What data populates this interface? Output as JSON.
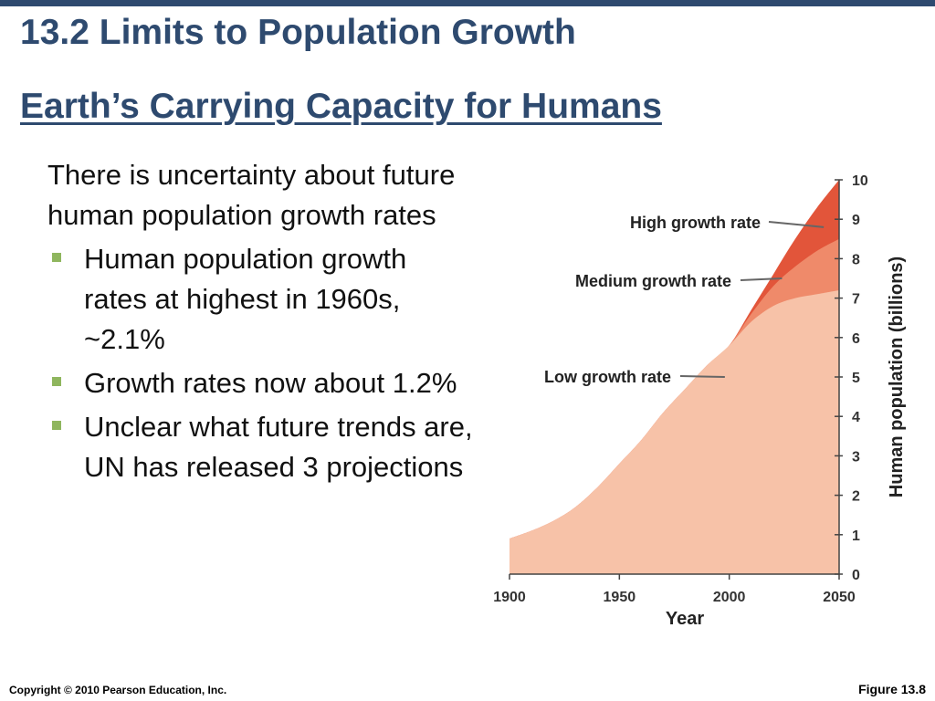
{
  "slide": {
    "title": "13.2 Limits to Population Growth",
    "subtitle": "Earth’s Carrying Capacity for Humans",
    "intro": "There is uncertainty about future human population growth rates",
    "bullets": [
      "Human population growth rates at highest in 1960s, ~2.1%",
      "Growth rates now about 1.2%",
      "Unclear what future trends are, UN has released 3 projections"
    ],
    "copyright": "Copyright © 2010 Pearson Education, Inc.",
    "figure_label": "Figure 13.8"
  },
  "colors": {
    "title": "#2e4a6f",
    "bullet": "#8fb65e",
    "high": "#e2553a",
    "medium": "#ef8a6a",
    "low": "#f7c2a8"
  },
  "chart_data": {
    "type": "area",
    "xlabel": "Year",
    "ylabel": "Human population (billions)",
    "xlim": [
      1900,
      2050
    ],
    "ylim": [
      0,
      10
    ],
    "x_ticks": [
      1900,
      1950,
      2000,
      2050
    ],
    "y_ticks": [
      0,
      1,
      2,
      3,
      4,
      5,
      6,
      7,
      8,
      9,
      10
    ],
    "y_axis_side": "right",
    "grid": false,
    "history": {
      "x": [
        1900,
        1910,
        1920,
        1930,
        1940,
        1950,
        1960,
        1970,
        1980,
        1990,
        2000
      ],
      "y": [
        0.9,
        1.1,
        1.35,
        1.7,
        2.2,
        2.8,
        3.4,
        4.1,
        4.7,
        5.3,
        5.8
      ]
    },
    "series": [
      {
        "name": "High growth rate",
        "x": [
          2000,
          2010,
          2020,
          2030,
          2040,
          2050
        ],
        "y": [
          5.8,
          6.7,
          7.6,
          8.5,
          9.3,
          10.0
        ],
        "color_key": "high"
      },
      {
        "name": "Medium growth rate",
        "x": [
          2000,
          2010,
          2020,
          2030,
          2040,
          2050
        ],
        "y": [
          5.8,
          6.6,
          7.3,
          7.8,
          8.2,
          8.5
        ],
        "color_key": "medium"
      },
      {
        "name": "Low growth rate",
        "x": [
          2000,
          2010,
          2020,
          2030,
          2040,
          2050
        ],
        "y": [
          5.8,
          6.4,
          6.8,
          7.0,
          7.1,
          7.2
        ],
        "color_key": "low"
      }
    ],
    "annotations": [
      {
        "text": "High growth rate",
        "x": 2043,
        "y": 8.8
      },
      {
        "text": "Medium growth rate",
        "x": 2024,
        "y": 7.5
      },
      {
        "text": "Low growth rate",
        "x": 1998,
        "y": 5.0
      }
    ]
  }
}
